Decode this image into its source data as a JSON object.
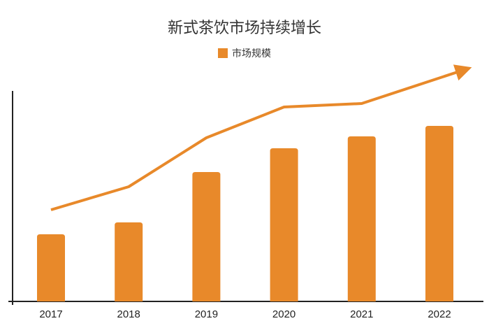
{
  "chart_data": {
    "type": "bar",
    "title": "新式茶饮市场持续增长",
    "legend": [
      {
        "name": "市场规模",
        "color": "#E8892A"
      }
    ],
    "legend_position": "top-center",
    "categories": [
      "2017",
      "2018",
      "2019",
      "2020",
      "2021",
      "2022"
    ],
    "series": [
      {
        "name": "市场规模",
        "values": [
          96,
          113,
          185,
          219,
          236,
          251
        ]
      }
    ],
    "trend_line": {
      "values": [
        131,
        164,
        234,
        278,
        283
      ],
      "arrow_end_value": 331,
      "color": "#E8892A"
    },
    "ylim": [
      0,
      300
    ],
    "y_axis_labels": false,
    "grid": false,
    "xlabel": "",
    "ylabel": "",
    "note": "no y-axis values shown; values are relative estimates"
  }
}
